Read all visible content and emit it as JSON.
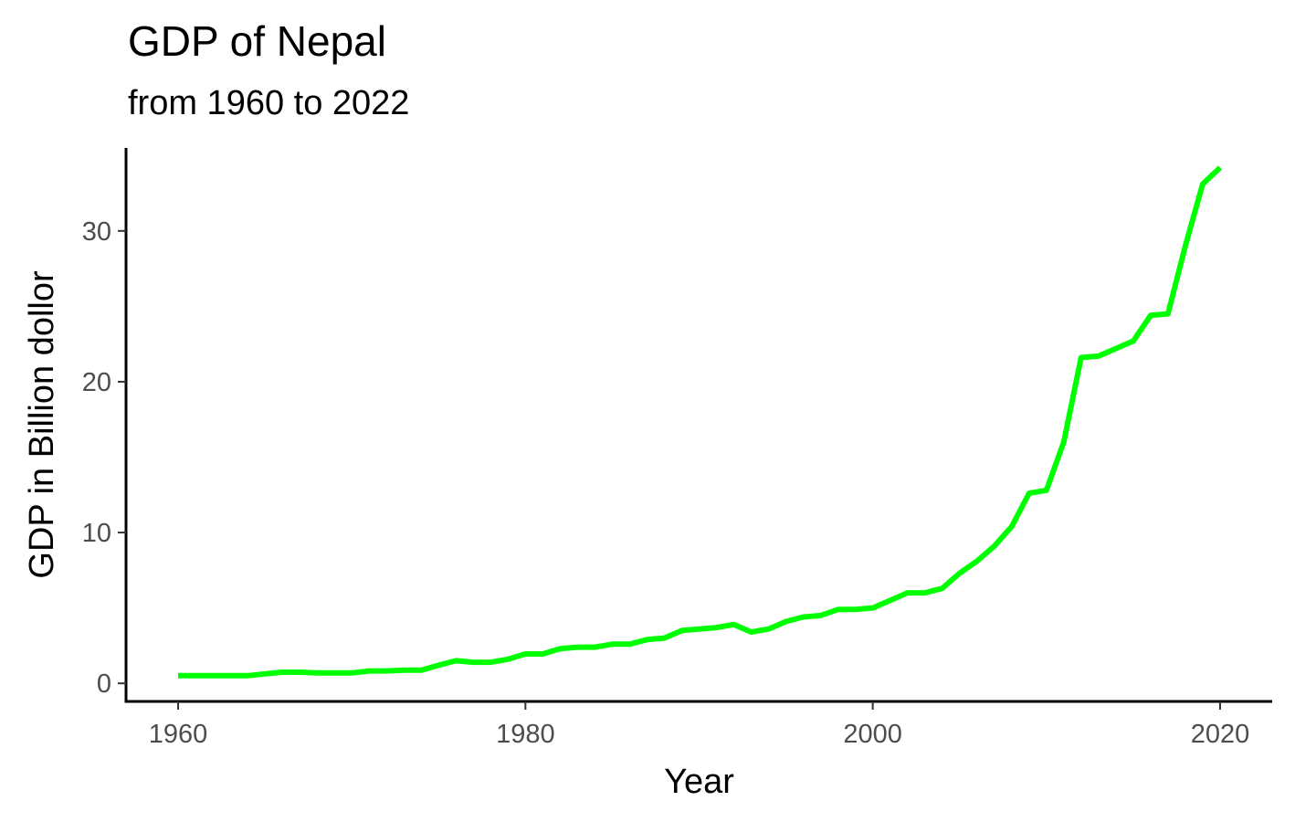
{
  "chart_data": {
    "type": "line",
    "title": "GDP of Nepal",
    "subtitle": "from 1960 to 2022",
    "xlabel": "Year",
    "ylabel": "GDP in Billion dollor",
    "xlim": [
      1957,
      2023
    ],
    "ylim": [
      -1.2,
      35.5
    ],
    "xticks": [
      1960,
      1980,
      2000,
      2020
    ],
    "yticks": [
      0,
      10,
      20,
      30
    ],
    "grid": false,
    "line_color": "#00ff00",
    "series": [
      {
        "x": [
          1960,
          1961,
          1962,
          1963,
          1964,
          1965,
          1966,
          1967,
          1968,
          1969,
          1970,
          1971,
          1972,
          1973,
          1974,
          1975,
          1976,
          1977,
          1978,
          1979,
          1980,
          1981,
          1982,
          1983,
          1984,
          1985,
          1986,
          1987,
          1988,
          1989,
          1990,
          1991,
          1992,
          1993,
          1994,
          1995,
          1996,
          1997,
          1998,
          1999,
          2000,
          2001,
          2002,
          2003,
          2004,
          2005,
          2006,
          2007,
          2008,
          2009,
          2010,
          2011,
          2012,
          2013,
          2014,
          2015,
          2016,
          2017,
          2018,
          2019,
          2020
        ],
        "values": [
          0.51,
          0.51,
          0.51,
          0.51,
          0.51,
          0.63,
          0.74,
          0.74,
          0.69,
          0.69,
          0.69,
          0.82,
          0.82,
          0.87,
          0.87,
          1.2,
          1.5,
          1.4,
          1.4,
          1.6,
          1.95,
          1.95,
          2.3,
          2.4,
          2.4,
          2.6,
          2.6,
          2.9,
          3.0,
          3.5,
          3.6,
          3.7,
          3.9,
          3.4,
          3.6,
          4.1,
          4.4,
          4.5,
          4.9,
          4.9,
          5.0,
          5.5,
          6.0,
          6.0,
          6.3,
          7.3,
          8.1,
          9.1,
          10.4,
          12.6,
          12.8,
          16.0,
          21.6,
          21.7,
          22.2,
          22.7,
          24.4,
          24.5,
          29.0,
          33.1,
          34.2
        ]
      }
    ]
  }
}
